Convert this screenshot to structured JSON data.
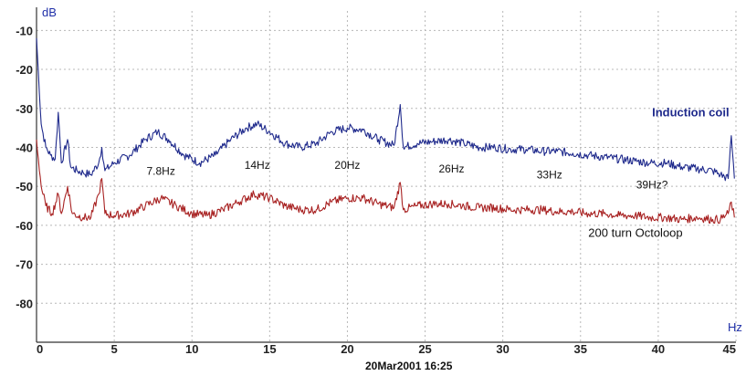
{
  "chart_data": {
    "type": "line",
    "title": "",
    "xlabel": "Hz",
    "ylabel": "dB",
    "xlim": [
      0,
      45
    ],
    "ylim": [
      -90,
      -5
    ],
    "grid": true,
    "x_ticks": [
      {
        "value": 0,
        "label": "0"
      },
      {
        "value": 5,
        "label": "5"
      },
      {
        "value": 10,
        "label": "10"
      },
      {
        "value": 15,
        "label": "15"
      },
      {
        "value": 20,
        "label": "20"
      },
      {
        "value": 25,
        "label": "25"
      },
      {
        "value": 30,
        "label": "30"
      },
      {
        "value": 35,
        "label": "35"
      },
      {
        "value": 40,
        "label": "40"
      },
      {
        "value": 45,
        "label": "45"
      }
    ],
    "y_ticks": [
      {
        "value": -10,
        "label": "-10"
      },
      {
        "value": -20,
        "label": "-20"
      },
      {
        "value": -30,
        "label": "-30"
      },
      {
        "value": -40,
        "label": "-40"
      },
      {
        "value": -50,
        "label": "-50"
      },
      {
        "value": -60,
        "label": "-60"
      },
      {
        "value": -70,
        "label": "-70"
      },
      {
        "value": -80,
        "label": "-80"
      }
    ],
    "annotations": [
      {
        "text": "7.8Hz",
        "x": 8,
        "y": -47
      },
      {
        "text": "14Hz",
        "x": 14.2,
        "y": -45.5
      },
      {
        "text": "20Hz",
        "x": 20,
        "y": -45.5
      },
      {
        "text": "26Hz",
        "x": 26.7,
        "y": -46.5
      },
      {
        "text": "33Hz",
        "x": 33,
        "y": -48
      },
      {
        "text": "39Hz?",
        "x": 39.6,
        "y": -50.5
      }
    ],
    "footer": "20Mar2001  16:25",
    "series": [
      {
        "name": "Induction coil",
        "color": "#1f2a8c",
        "label_pos": {
          "x": 39.6,
          "y": -32
        },
        "values": [
          [
            0,
            -12
          ],
          [
            0.3,
            -34
          ],
          [
            0.6,
            -40
          ],
          [
            0.9,
            -42
          ],
          [
            1.2,
            -43
          ],
          [
            1.4,
            -31
          ],
          [
            1.6,
            -44
          ],
          [
            2.0,
            -38
          ],
          [
            2.2,
            -45
          ],
          [
            2.6,
            -46
          ],
          [
            3.0,
            -46.5
          ],
          [
            3.5,
            -47
          ],
          [
            4.0,
            -44
          ],
          [
            4.2,
            -40
          ],
          [
            4.4,
            -46
          ],
          [
            5.0,
            -44
          ],
          [
            6.0,
            -42
          ],
          [
            7.0,
            -38
          ],
          [
            7.8,
            -36
          ],
          [
            8.5,
            -38
          ],
          [
            9.5,
            -42
          ],
          [
            10.5,
            -44
          ],
          [
            11.5,
            -42
          ],
          [
            12.5,
            -38
          ],
          [
            13.5,
            -35
          ],
          [
            14.2,
            -34
          ],
          [
            15.0,
            -36
          ],
          [
            16.0,
            -39
          ],
          [
            17.0,
            -40
          ],
          [
            18.0,
            -39
          ],
          [
            19.0,
            -36
          ],
          [
            20.0,
            -35
          ],
          [
            21.0,
            -35.5
          ],
          [
            22.0,
            -38
          ],
          [
            23.0,
            -39.5
          ],
          [
            23.4,
            -29
          ],
          [
            23.6,
            -40
          ],
          [
            24.5,
            -39
          ],
          [
            25.5,
            -38.5
          ],
          [
            26.5,
            -38
          ],
          [
            27.5,
            -39
          ],
          [
            28.5,
            -40
          ],
          [
            29.5,
            -40
          ],
          [
            30.5,
            -40.5
          ],
          [
            31.5,
            -40.5
          ],
          [
            32.5,
            -41
          ],
          [
            33.5,
            -41
          ],
          [
            34.5,
            -41.5
          ],
          [
            35.5,
            -42
          ],
          [
            36.5,
            -42.5
          ],
          [
            37.5,
            -43
          ],
          [
            38.5,
            -43.5
          ],
          [
            39.5,
            -44
          ],
          [
            40.5,
            -44
          ],
          [
            41.5,
            -45
          ],
          [
            42.5,
            -45.5
          ],
          [
            43.5,
            -46
          ],
          [
            44.0,
            -47
          ],
          [
            44.5,
            -48
          ],
          [
            44.7,
            -37
          ],
          [
            44.9,
            -48
          ]
        ]
      },
      {
        "name": "200 turn Octoloop",
        "color": "#a82222",
        "label_pos": {
          "x": 35.5,
          "y": -63
        },
        "values": [
          [
            0,
            -38
          ],
          [
            0.3,
            -50
          ],
          [
            0.6,
            -55
          ],
          [
            1.0,
            -57
          ],
          [
            1.4,
            -52
          ],
          [
            1.6,
            -57
          ],
          [
            2.0,
            -50
          ],
          [
            2.3,
            -57
          ],
          [
            3.0,
            -58
          ],
          [
            3.5,
            -58
          ],
          [
            4.0,
            -52
          ],
          [
            4.2,
            -48
          ],
          [
            4.4,
            -57
          ],
          [
            5.0,
            -57.5
          ],
          [
            6.0,
            -57
          ],
          [
            7.0,
            -55
          ],
          [
            8.0,
            -53
          ],
          [
            9.0,
            -55
          ],
          [
            10.0,
            -57
          ],
          [
            11.0,
            -57.5
          ],
          [
            12.0,
            -56
          ],
          [
            13.0,
            -54
          ],
          [
            14.0,
            -52
          ],
          [
            15.0,
            -53
          ],
          [
            16.0,
            -55
          ],
          [
            17.0,
            -56
          ],
          [
            18.0,
            -56
          ],
          [
            19.0,
            -54
          ],
          [
            20.0,
            -53
          ],
          [
            21.0,
            -53
          ],
          [
            22.0,
            -54.5
          ],
          [
            23.0,
            -55.5
          ],
          [
            23.4,
            -49
          ],
          [
            23.6,
            -56
          ],
          [
            24.5,
            -55
          ],
          [
            25.5,
            -54.5
          ],
          [
            26.5,
            -54.5
          ],
          [
            27.5,
            -55
          ],
          [
            28.5,
            -55.5
          ],
          [
            29.5,
            -55.5
          ],
          [
            30.5,
            -56
          ],
          [
            31.5,
            -56
          ],
          [
            32.5,
            -56
          ],
          [
            33.5,
            -56.5
          ],
          [
            34.5,
            -56.5
          ],
          [
            35.5,
            -57
          ],
          [
            36.5,
            -57
          ],
          [
            37.5,
            -57.5
          ],
          [
            38.5,
            -57.5
          ],
          [
            39.5,
            -58
          ],
          [
            40.5,
            -58
          ],
          [
            41.5,
            -58.5
          ],
          [
            42.5,
            -58
          ],
          [
            43.5,
            -58.5
          ],
          [
            44.0,
            -58.5
          ],
          [
            44.5,
            -57
          ],
          [
            44.7,
            -54
          ],
          [
            44.9,
            -58
          ]
        ]
      }
    ]
  }
}
